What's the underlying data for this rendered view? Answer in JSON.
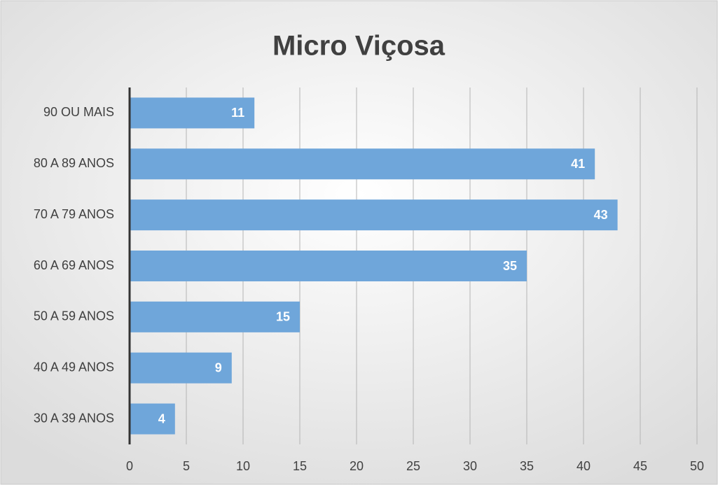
{
  "chart_data": {
    "type": "bar",
    "orientation": "horizontal",
    "title": "Micro Viçosa",
    "categories": [
      "90 OU MAIS",
      "80 A 89 ANOS",
      "70 A 79 ANOS",
      "60 A 69 ANOS",
      "50 A 59 ANOS",
      "40 A 49 ANOS",
      "30 A 39 ANOS"
    ],
    "values": [
      11,
      41,
      43,
      35,
      15,
      9,
      4
    ],
    "color": "#6fa6da",
    "xlim": [
      0,
      50
    ],
    "xticks": [
      0,
      5,
      10,
      15,
      20,
      25,
      30,
      35,
      40,
      45,
      50
    ],
    "grid": true
  }
}
